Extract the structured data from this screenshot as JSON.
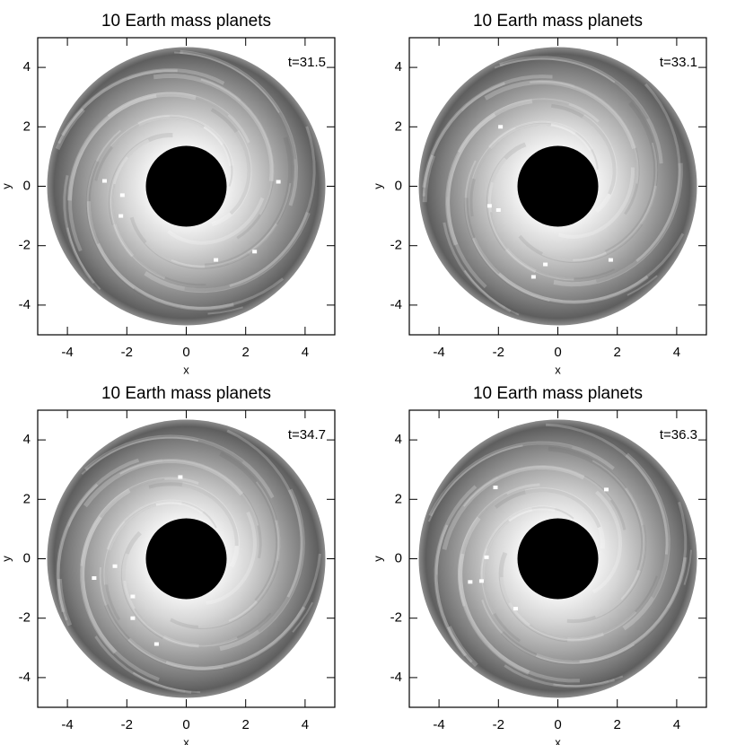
{
  "chart_data": [
    {
      "type": "scatter",
      "title": "10 Earth mass planets",
      "annotation": "t=31.5",
      "xlabel": "x",
      "ylabel": "y",
      "xlim": [
        -5,
        5
      ],
      "ylim": [
        -5,
        5
      ],
      "xticks": [
        -4,
        -2,
        0,
        2,
        4
      ],
      "yticks": [
        -4,
        -2,
        0,
        2,
        4
      ],
      "color": "#ffffff",
      "x": [
        -2.75,
        -2.15,
        -2.2,
        1.0,
        2.3,
        3.1
      ],
      "values": [
        0.18,
        -0.3,
        -1.0,
        -2.48,
        -2.2,
        0.15
      ]
    },
    {
      "type": "scatter",
      "title": "10 Earth mass planets",
      "annotation": "t=33.1",
      "xlabel": "x",
      "ylabel": "y",
      "xlim": [
        -5,
        5
      ],
      "ylim": [
        -5,
        5
      ],
      "xticks": [
        -4,
        -2,
        0,
        2,
        4
      ],
      "yticks": [
        -4,
        -2,
        0,
        2,
        4
      ],
      "color": "#ffffff",
      "x": [
        -1.93,
        -2.3,
        -2.0,
        -0.42,
        -0.82,
        1.78
      ],
      "values": [
        2.0,
        -0.66,
        -0.8,
        -2.63,
        -3.05,
        -2.48
      ]
    },
    {
      "type": "scatter",
      "title": "10 Earth mass planets",
      "annotation": "t=34.7",
      "xlabel": "x",
      "ylabel": "y",
      "xlim": [
        -5,
        5
      ],
      "ylim": [
        -5,
        5
      ],
      "xticks": [
        -4,
        -2,
        0,
        2,
        4
      ],
      "yticks": [
        -4,
        -2,
        0,
        2,
        4
      ],
      "color": "#ffffff",
      "x": [
        -0.2,
        -2.4,
        -3.1,
        -1.8,
        -1.8,
        -1.0
      ],
      "values": [
        2.75,
        -0.25,
        -0.65,
        -1.27,
        -2.0,
        -2.87
      ]
    },
    {
      "type": "scatter",
      "title": "10 Earth mass planets",
      "annotation": "t=36.3",
      "xlabel": "x",
      "ylabel": "y",
      "xlim": [
        -5,
        5
      ],
      "ylim": [
        -5,
        5
      ],
      "xticks": [
        -4,
        -2,
        0,
        2,
        4
      ],
      "yticks": [
        -4,
        -2,
        0,
        2,
        4
      ],
      "color": "#ffffff",
      "x": [
        -2.1,
        1.63,
        -2.4,
        -2.57,
        -2.95,
        -1.42
      ],
      "values": [
        2.4,
        2.33,
        0.05,
        -0.75,
        -0.78,
        -1.68
      ]
    }
  ]
}
